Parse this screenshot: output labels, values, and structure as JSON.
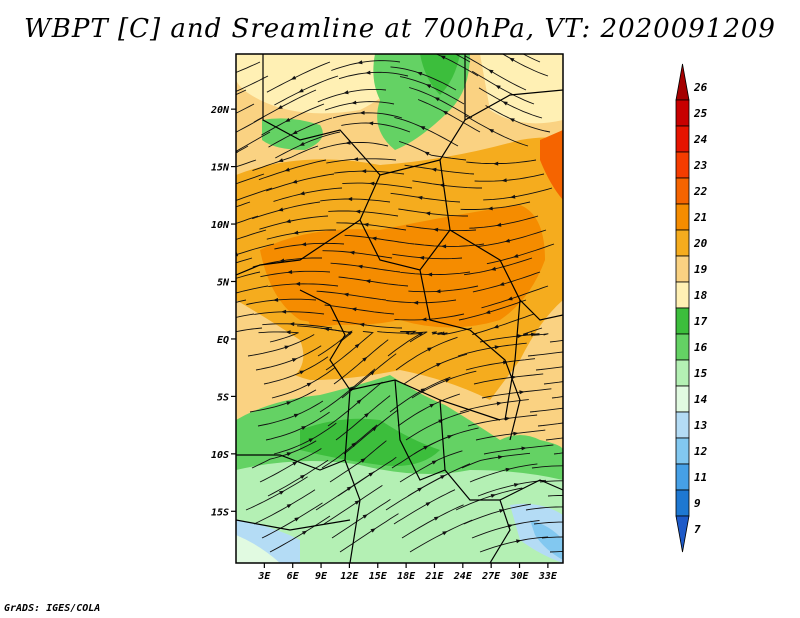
{
  "title": "WBPT [C] and Sreamline at 700hPa, VT: 2020091209",
  "footer": "GrADS: IGES/COLA",
  "map": {
    "lat_labels": [
      "20N",
      "15N",
      "10N",
      "5N",
      "EQ",
      "5S",
      "10S",
      "15S"
    ],
    "lat_values": [
      20,
      15,
      10,
      5,
      0,
      -5,
      -10,
      -15
    ],
    "lon_labels": [
      "3E",
      "6E",
      "9E",
      "12E",
      "15E",
      "18E",
      "21E",
      "24E",
      "27E",
      "30E",
      "33E"
    ],
    "lon_values": [
      3,
      6,
      9,
      12,
      15,
      18,
      21,
      24,
      27,
      30,
      33
    ],
    "lat_range": [
      -19.5,
      24.8
    ],
    "lon_range": [
      0,
      34.6
    ]
  },
  "colorbar": {
    "labels": [
      "26",
      "25",
      "24",
      "23",
      "22",
      "21",
      "20",
      "19",
      "18",
      "17",
      "16",
      "15",
      "14",
      "13",
      "12",
      "11",
      "9",
      "7"
    ],
    "colors": [
      "#a50000",
      "#c80000",
      "#e61400",
      "#f53c00",
      "#f56400",
      "#f58c00",
      "#f5ac1e",
      "#fad282",
      "#fff0b4",
      "#3cbe3c",
      "#64d264",
      "#b4f0b4",
      "#e1fae1",
      "#b4dcf5",
      "#82c8f0",
      "#46a0e6",
      "#1e78d2",
      "#1e5ac8"
    ]
  }
}
